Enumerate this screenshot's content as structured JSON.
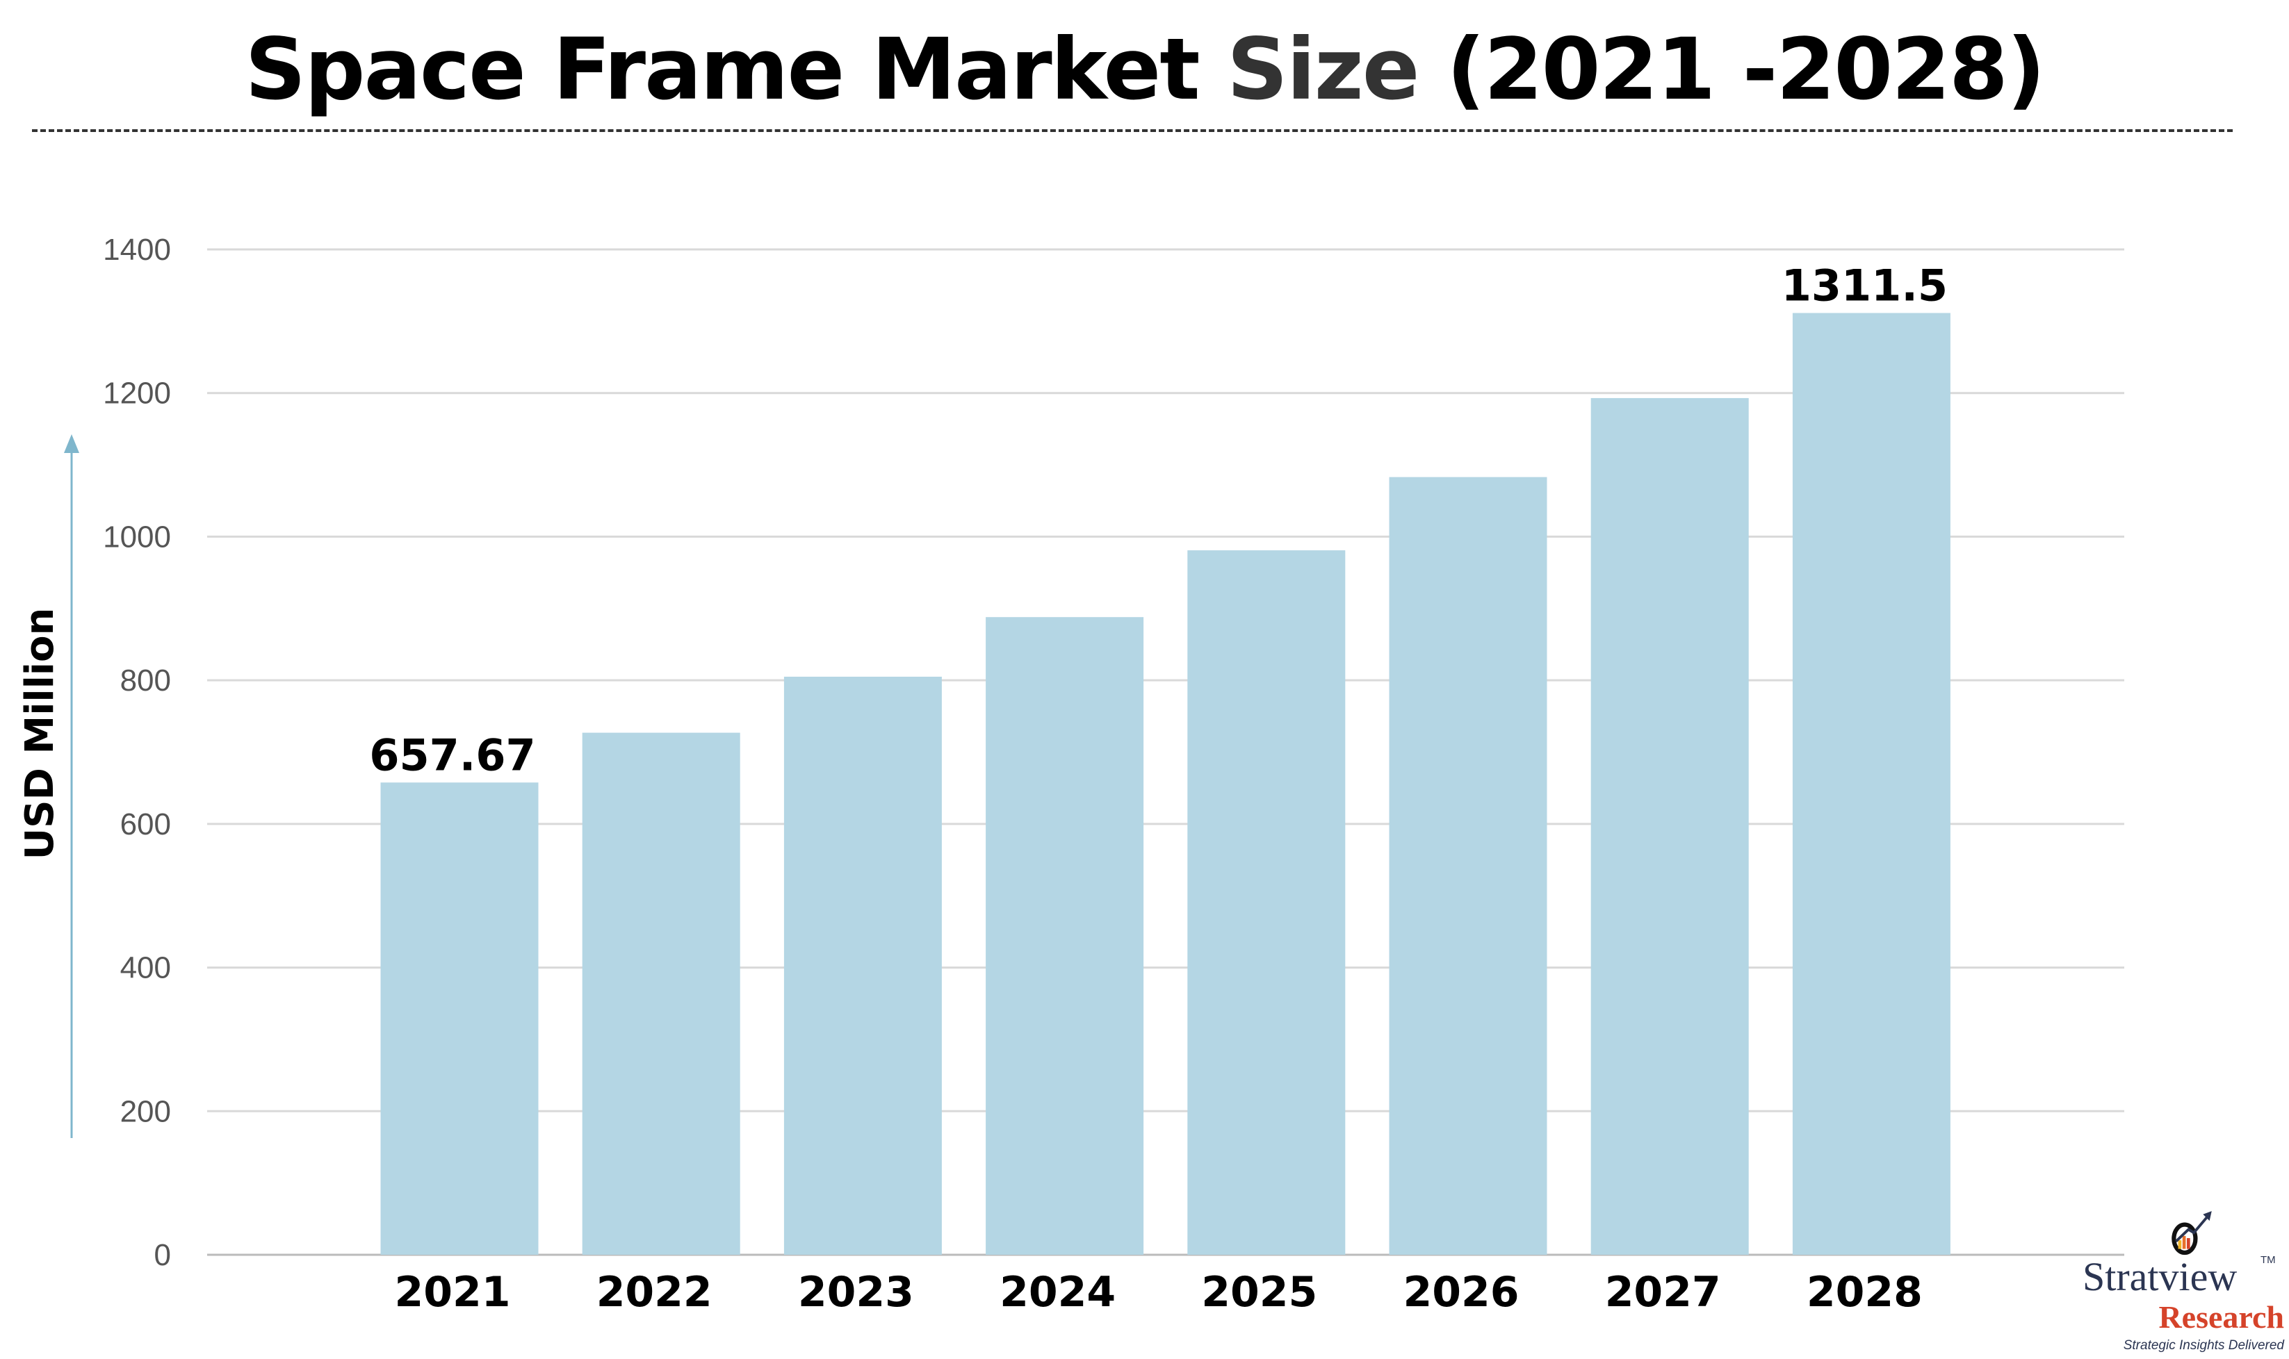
{
  "chart_data": {
    "type": "bar",
    "title": "Space Frame Market Size (2021 -2028)",
    "title_parts": {
      "a": "Space Frame Market ",
      "b": "Size",
      "c": " (2021 -2028)"
    },
    "categories": [
      "2021",
      "2022",
      "2023",
      "2024",
      "2025",
      "2026",
      "2027",
      "2028"
    ],
    "values": [
      657.67,
      727,
      805,
      888,
      981,
      1083,
      1193,
      1311.5
    ],
    "data_labels": {
      "0": "657.67",
      "7": "1311.5"
    },
    "xlabel": "",
    "ylabel": "USD Million",
    "ylim": [
      0,
      1400
    ],
    "yticks": [
      0,
      200,
      400,
      600,
      800,
      1000,
      1200,
      1400
    ],
    "grid": true,
    "bar_color": "#b4d6e4",
    "title_highlight_color": "#333333"
  },
  "logo": {
    "name": "Stratview",
    "sub": "Research",
    "tagline": "Strategic Insights Delivered",
    "tm": "TM"
  }
}
